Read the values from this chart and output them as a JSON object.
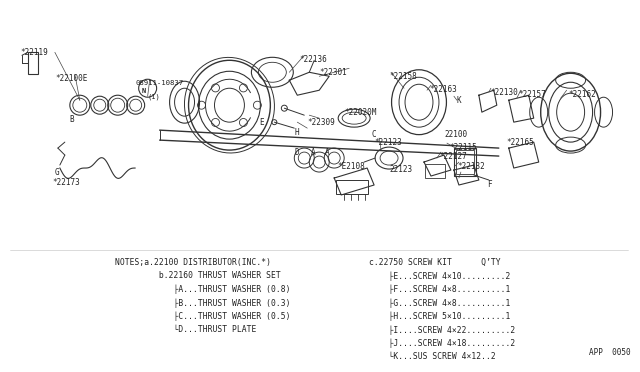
{
  "bg_color": "#ffffff",
  "line_color": "#333333",
  "text_color": "#222222",
  "page_ref": "APP  0050",
  "notes_block": [
    "NOTES;a.22100 DISTRIBUTOR(INC.*)",
    "         b.22160 THRUST WASHER SET",
    "            ├A...THRUST WASHER (0.8)",
    "            ├B...THRUST WASHER (0.3)",
    "            ├C...THRUST WASHER (0.5)",
    "            └D...THRUST PLATE"
  ],
  "screw_block_header": "c.22750 SCREW KIT      Q’TY",
  "screw_block": [
    "    ├E...SCREW 4×10.........2",
    "    ├F...SCREW 4×8..........1",
    "    ├G...SCREW 4×8..........1",
    "    ├H...SCREW 5×10.........1",
    "    ├I....SCREW 4×22.........2",
    "    ├J....SCREW 4×18.........2",
    "    └K...SUS SCREW 4×12..2"
  ]
}
